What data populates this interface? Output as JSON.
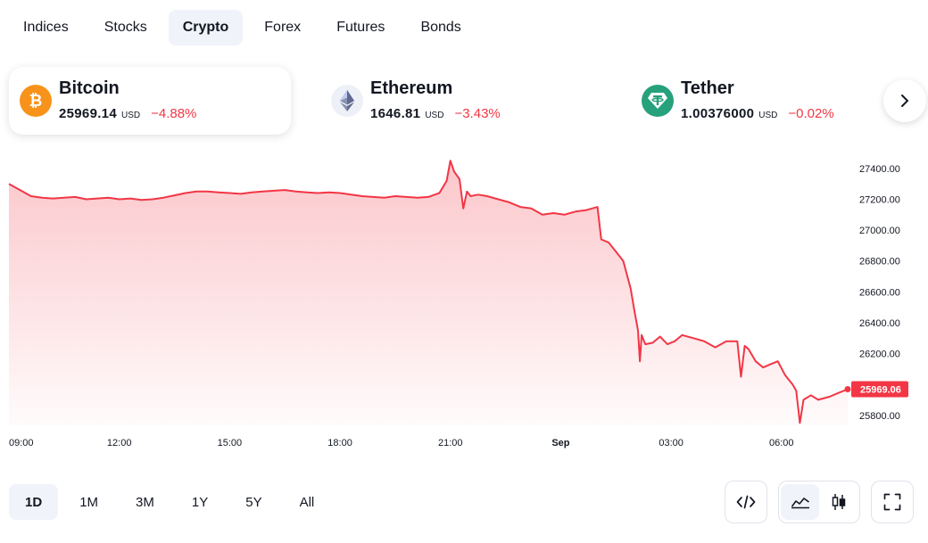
{
  "tabs": [
    {
      "label": "Indices",
      "active": false
    },
    {
      "label": "Stocks",
      "active": false
    },
    {
      "label": "Crypto",
      "active": true
    },
    {
      "label": "Forex",
      "active": false
    },
    {
      "label": "Futures",
      "active": false
    },
    {
      "label": "Bonds",
      "active": false
    }
  ],
  "assets": [
    {
      "name": "Bitcoin",
      "price": "25969.14",
      "currency": "USD",
      "change": "−4.88%",
      "icon": "bitcoin-icon",
      "color": "#f7931a"
    },
    {
      "name": "Ethereum",
      "price": "1646.81",
      "currency": "USD",
      "change": "−3.43%",
      "icon": "ethereum-icon",
      "color": "#627eea"
    },
    {
      "name": "Tether",
      "price": "1.00376000",
      "currency": "USD",
      "change": "−0.02%",
      "icon": "tether-icon",
      "color": "#26a17b"
    }
  ],
  "ranges": [
    {
      "label": "1D",
      "active": true
    },
    {
      "label": "1M",
      "active": false
    },
    {
      "label": "3M",
      "active": false
    },
    {
      "label": "1Y",
      "active": false
    },
    {
      "label": "5Y",
      "active": false
    },
    {
      "label": "All",
      "active": false
    }
  ],
  "colors": {
    "line": "#f23645",
    "accent_bg": "#f0f3fa"
  },
  "chart_data": {
    "type": "area",
    "y_ticks": [
      "27400.00",
      "27200.00",
      "27000.00",
      "26800.00",
      "26600.00",
      "26400.00",
      "26200.00",
      "25800.00"
    ],
    "ylim": [
      25735,
      27480
    ],
    "x_ticks": [
      {
        "label": "09:00",
        "h": 0
      },
      {
        "label": "12:00",
        "h": 3
      },
      {
        "label": "15:00",
        "h": 6
      },
      {
        "label": "18:00",
        "h": 9
      },
      {
        "label": "21:00",
        "h": 12
      },
      {
        "label": "Sep",
        "h": 15
      },
      {
        "label": "03:00",
        "h": 18
      },
      {
        "label": "06:00",
        "h": 21
      }
    ],
    "xlim": [
      0,
      22.8
    ],
    "last_price_label": "25969.06",
    "last_price": 25969.06,
    "grid": false,
    "series": [
      {
        "x": [
          0,
          0.3,
          0.6,
          0.9,
          1.2,
          1.5,
          1.8,
          2.1,
          2.4,
          2.7,
          3.0,
          3.3,
          3.6,
          3.9,
          4.2,
          4.5,
          4.8,
          5.1,
          5.4,
          5.7,
          6.0,
          6.3,
          6.6,
          6.9,
          7.2,
          7.5,
          7.8,
          8.1,
          8.4,
          8.7,
          9.0,
          9.3,
          9.6,
          9.9,
          10.2,
          10.5,
          10.8,
          11.1,
          11.4,
          11.7,
          11.9,
          12.0,
          12.1,
          12.25,
          12.35,
          12.45,
          12.55,
          12.75,
          13.0,
          13.3,
          13.6,
          13.9,
          14.2,
          14.5,
          14.8,
          15.1,
          15.4,
          15.7,
          16.0,
          16.1,
          16.3,
          16.5,
          16.7,
          16.9,
          17.0,
          17.1,
          17.15,
          17.2,
          17.3,
          17.5,
          17.7,
          17.9,
          18.1,
          18.3,
          18.6,
          18.9,
          19.2,
          19.5,
          19.8,
          19.9,
          20.0,
          20.1,
          20.3,
          20.5,
          20.7,
          20.9,
          21.1,
          21.3,
          21.4,
          21.5,
          21.6,
          21.8,
          22.0,
          22.3,
          22.6,
          22.8
        ],
        "y": [
          27300,
          27260,
          27220,
          27210,
          27205,
          27210,
          27215,
          27200,
          27205,
          27210,
          27200,
          27205,
          27195,
          27200,
          27210,
          27225,
          27240,
          27250,
          27250,
          27245,
          27240,
          27235,
          27245,
          27250,
          27255,
          27260,
          27250,
          27245,
          27240,
          27245,
          27240,
          27230,
          27220,
          27215,
          27210,
          27220,
          27215,
          27210,
          27215,
          27240,
          27320,
          27450,
          27380,
          27330,
          27140,
          27250,
          27220,
          27230,
          27220,
          27200,
          27180,
          27150,
          27140,
          27100,
          27110,
          27100,
          27120,
          27130,
          27150,
          26940,
          26920,
          26860,
          26800,
          26620,
          26480,
          26350,
          26150,
          26320,
          26260,
          26270,
          26310,
          26260,
          26280,
          26320,
          26300,
          26280,
          26240,
          26280,
          26280,
          26050,
          26250,
          26230,
          26150,
          26110,
          26130,
          26150,
          26060,
          26000,
          25960,
          25750,
          25900,
          25930,
          25900,
          25920,
          25950,
          25969
        ]
      }
    ]
  }
}
